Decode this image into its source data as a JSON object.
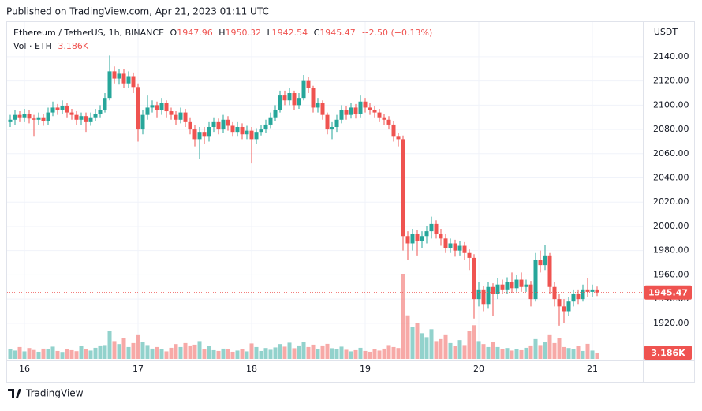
{
  "published": "Published on TradingView.com, Apr 21, 2023 01:11 UTC",
  "brand": "TradingView",
  "chart_data": {
    "type": "candlestick",
    "symbol": "Ethereum / TetherUS, 1h, BINANCE",
    "ohlc_letters": [
      "O",
      "H",
      "L",
      "C"
    ],
    "change_label": "−2.50 (−0.13%)",
    "volume_title": "Vol · ETH",
    "volume_label": "3.186K",
    "currency": "USDT",
    "up_color": "#26a69a",
    "down_color": "#ef5350",
    "grid": true,
    "categories": [
      null,
      null,
      null,
      "16",
      null,
      null,
      null,
      null,
      null,
      null,
      null,
      null,
      null,
      null,
      null,
      null,
      null,
      null,
      null,
      null,
      null,
      null,
      null,
      null,
      null,
      null,
      null,
      "17",
      null,
      null,
      null,
      null,
      null,
      null,
      null,
      null,
      null,
      null,
      null,
      null,
      null,
      null,
      null,
      null,
      null,
      null,
      null,
      null,
      null,
      null,
      null,
      "18",
      null,
      null,
      null,
      null,
      null,
      null,
      null,
      null,
      null,
      null,
      null,
      null,
      null,
      null,
      null,
      null,
      null,
      null,
      null,
      null,
      null,
      null,
      null,
      "19",
      null,
      null,
      null,
      null,
      null,
      null,
      null,
      null,
      null,
      null,
      null,
      null,
      null,
      null,
      null,
      null,
      null,
      null,
      null,
      null,
      null,
      null,
      null,
      "20",
      null,
      null,
      null,
      null,
      null,
      null,
      null,
      null,
      null,
      null,
      null,
      null,
      null,
      null,
      null,
      null,
      null,
      null,
      null,
      null,
      null,
      null,
      null,
      "21",
      null
    ],
    "open": [
      2086,
      2088,
      2092,
      2090,
      2093,
      2089,
      2088,
      2090,
      2087,
      2094,
      2098,
      2096,
      2099,
      2094,
      2092,
      2088,
      2091,
      2086,
      2090,
      2093,
      2096,
      2106,
      2128,
      2122,
      2126,
      2118,
      2124,
      2115,
      2080,
      2092,
      2098,
      2100,
      2096,
      2102,
      2095,
      2092,
      2088,
      2094,
      2086,
      2080,
      2072,
      2078,
      2074,
      2082,
      2086,
      2080,
      2088,
      2083,
      2078,
      2082,
      2076,
      2079,
      2072,
      2078,
      2080,
      2084,
      2090,
      2096,
      2108,
      2104,
      2110,
      2100,
      2106,
      2120,
      2114,
      2098,
      2102,
      2092,
      2080,
      2082,
      2088,
      2096,
      2092,
      2098,
      2093,
      2103,
      2098,
      2096,
      2094,
      2090,
      2088,
      2084,
      2074,
      2072,
      1992,
      1986,
      1994,
      1988,
      1992,
      1996,
      2002,
      1994,
      1990,
      1982,
      1986,
      1980,
      1984,
      1978,
      1974,
      1940,
      1948,
      1936,
      1950,
      1944,
      1952,
      1948,
      1954,
      1949,
      1956,
      1950,
      1952,
      1940,
      1972,
      1968,
      1976,
      1950,
      1940,
      1934,
      1930,
      1938,
      1944,
      1940,
      1948,
      1946,
      1947.96
    ],
    "high": [
      2092,
      2096,
      2095,
      2097,
      2096,
      2092,
      2094,
      2093,
      2098,
      2103,
      2101,
      2104,
      2102,
      2097,
      2095,
      2094,
      2094,
      2094,
      2097,
      2100,
      2110,
      2141,
      2132,
      2130,
      2130,
      2128,
      2127,
      2118,
      2096,
      2108,
      2104,
      2103,
      2106,
      2104,
      2098,
      2095,
      2098,
      2097,
      2090,
      2084,
      2082,
      2082,
      2086,
      2090,
      2089,
      2092,
      2091,
      2086,
      2086,
      2085,
      2083,
      2082,
      2081,
      2084,
      2088,
      2094,
      2100,
      2112,
      2112,
      2114,
      2112,
      2110,
      2125,
      2123,
      2116,
      2106,
      2104,
      2094,
      2086,
      2092,
      2100,
      2099,
      2102,
      2101,
      2108,
      2106,
      2102,
      2099,
      2097,
      2093,
      2091,
      2087,
      2077,
      2075,
      1996,
      1998,
      1997,
      1996,
      2000,
      2008,
      2005,
      1998,
      1994,
      1990,
      1989,
      1988,
      1987,
      1981,
      1977,
      1954,
      1951,
      1954,
      1953,
      1957,
      1956,
      1958,
      1962,
      1960,
      1962,
      1956,
      1955,
      1978,
      1980,
      1985,
      1978,
      1954,
      1944,
      1940,
      1942,
      1948,
      1948,
      1952,
      1957,
      1952,
      1950.32
    ],
    "low": [
      2082,
      2084,
      2086,
      2086,
      2085,
      2074,
      2084,
      2083,
      2084,
      2091,
      2092,
      2093,
      2090,
      2088,
      2084,
      2084,
      2078,
      2083,
      2087,
      2090,
      2094,
      2104,
      2118,
      2117,
      2114,
      2114,
      2110,
      2070,
      2076,
      2088,
      2094,
      2090,
      2092,
      2090,
      2088,
      2084,
      2085,
      2082,
      2076,
      2066,
      2056,
      2068,
      2070,
      2078,
      2076,
      2077,
      2079,
      2074,
      2074,
      2072,
      2072,
      2052,
      2068,
      2075,
      2077,
      2081,
      2087,
      2094,
      2100,
      2100,
      2096,
      2097,
      2104,
      2110,
      2094,
      2094,
      2088,
      2076,
      2072,
      2078,
      2085,
      2088,
      2089,
      2089,
      2090,
      2094,
      2092,
      2090,
      2086,
      2084,
      2080,
      2070,
      2066,
      1980,
      1972,
      1980,
      1976,
      1982,
      1986,
      1990,
      1990,
      1984,
      1978,
      1978,
      1975,
      1976,
      1972,
      1964,
      1924,
      1934,
      1930,
      1932,
      1926,
      1940,
      1944,
      1944,
      1945,
      1946,
      1946,
      1946,
      1934,
      1938,
      1962,
      1964,
      1944,
      1934,
      1918,
      1920,
      1926,
      1934,
      1936,
      1938,
      1942,
      1942,
      1942.54
    ],
    "close": [
      2088,
      2092,
      2090,
      2093,
      2089,
      2088,
      2090,
      2087,
      2094,
      2098,
      2096,
      2099,
      2094,
      2092,
      2088,
      2091,
      2086,
      2090,
      2093,
      2096,
      2106,
      2128,
      2122,
      2126,
      2118,
      2124,
      2115,
      2080,
      2092,
      2098,
      2100,
      2096,
      2102,
      2095,
      2092,
      2088,
      2094,
      2086,
      2080,
      2072,
      2078,
      2074,
      2082,
      2086,
      2080,
      2088,
      2083,
      2078,
      2082,
      2076,
      2079,
      2072,
      2078,
      2080,
      2084,
      2090,
      2096,
      2108,
      2104,
      2110,
      2100,
      2106,
      2120,
      2114,
      2098,
      2102,
      2092,
      2080,
      2082,
      2088,
      2096,
      2092,
      2098,
      2093,
      2103,
      2098,
      2096,
      2094,
      2090,
      2088,
      2084,
      2074,
      2072,
      1992,
      1986,
      1994,
      1988,
      1992,
      1996,
      2002,
      1994,
      1990,
      1982,
      1986,
      1980,
      1984,
      1978,
      1974,
      1940,
      1948,
      1936,
      1950,
      1944,
      1952,
      1948,
      1954,
      1949,
      1956,
      1950,
      1952,
      1940,
      1972,
      1968,
      1976,
      1950,
      1940,
      1934,
      1930,
      1938,
      1944,
      1940,
      1948,
      1946,
      1947.96,
      1945.47
    ],
    "volume": [
      5000,
      4200,
      6000,
      3800,
      5500,
      4500,
      3600,
      5200,
      4800,
      6200,
      4000,
      3500,
      5000,
      4400,
      3900,
      6500,
      4800,
      4200,
      5600,
      6800,
      7000,
      14000,
      9000,
      7500,
      10500,
      6000,
      8000,
      12000,
      8500,
      7000,
      5200,
      6000,
      4800,
      3800,
      5600,
      7500,
      6000,
      8000,
      6800,
      7200,
      9000,
      5000,
      6500,
      4400,
      4000,
      5200,
      4800,
      3600,
      4200,
      5000,
      3800,
      7800,
      6000,
      4000,
      5500,
      4600,
      5800,
      7500,
      6200,
      8200,
      5400,
      6800,
      8500,
      6000,
      7200,
      5000,
      6800,
      7600,
      5400,
      5000,
      6200,
      4600,
      3800,
      4400,
      5600,
      4000,
      3600,
      4800,
      4200,
      5200,
      7000,
      6000,
      5500,
      43000,
      22000,
      16000,
      18000,
      13000,
      11000,
      15000,
      9000,
      10000,
      12000,
      8000,
      6500,
      9500,
      7000,
      14000,
      17000,
      9000,
      7500,
      6000,
      8500,
      6000,
      4800,
      5500,
      4200,
      5000,
      4400,
      5600,
      6800,
      10000,
      7000,
      8500,
      12000,
      8000,
      10500,
      6000,
      5500,
      4800,
      6400,
      4000,
      7600,
      4200,
      3186
    ],
    "ylim": [
      1890.6,
      2168.6
    ],
    "yticks": [
      {
        "value": 1920,
        "label": "1920.00"
      },
      {
        "value": 1940,
        "label": "1940.00"
      },
      {
        "value": 1960,
        "label": "1960.00"
      },
      {
        "value": 1980,
        "label": "1980.00"
      },
      {
        "value": 2000,
        "label": "2000.00"
      },
      {
        "value": 2020,
        "label": "2020.00"
      },
      {
        "value": 2040,
        "label": "2040.00"
      },
      {
        "value": 2060,
        "label": "2060.00"
      },
      {
        "value": 2080,
        "label": "2080.00"
      },
      {
        "value": 2100,
        "label": "2100.00"
      },
      {
        "value": 2120,
        "label": "2120.00"
      },
      {
        "value": 2140,
        "label": "2140.00"
      }
    ]
  }
}
